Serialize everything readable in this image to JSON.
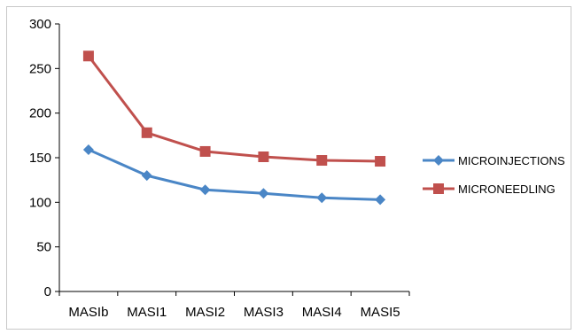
{
  "chart_data": {
    "type": "line",
    "categories": [
      "MASIb",
      "MASI1",
      "MASI2",
      "MASI3",
      "MASI4",
      "MASI5"
    ],
    "series": [
      {
        "name": "MICROINJECTIONS",
        "color": "#4a86c6",
        "marker": "diamond",
        "values": [
          159,
          130,
          114,
          110,
          105,
          103
        ]
      },
      {
        "name": "MICRONEEDLING",
        "color": "#c0504d",
        "marker": "square",
        "values": [
          264,
          178,
          157,
          151,
          147,
          146
        ]
      }
    ],
    "title": "",
    "xlabel": "",
    "ylabel": "",
    "ylim": [
      0,
      300
    ],
    "yticks": [
      0,
      50,
      100,
      150,
      200,
      250,
      300
    ],
    "grid": false,
    "legend": "right"
  }
}
